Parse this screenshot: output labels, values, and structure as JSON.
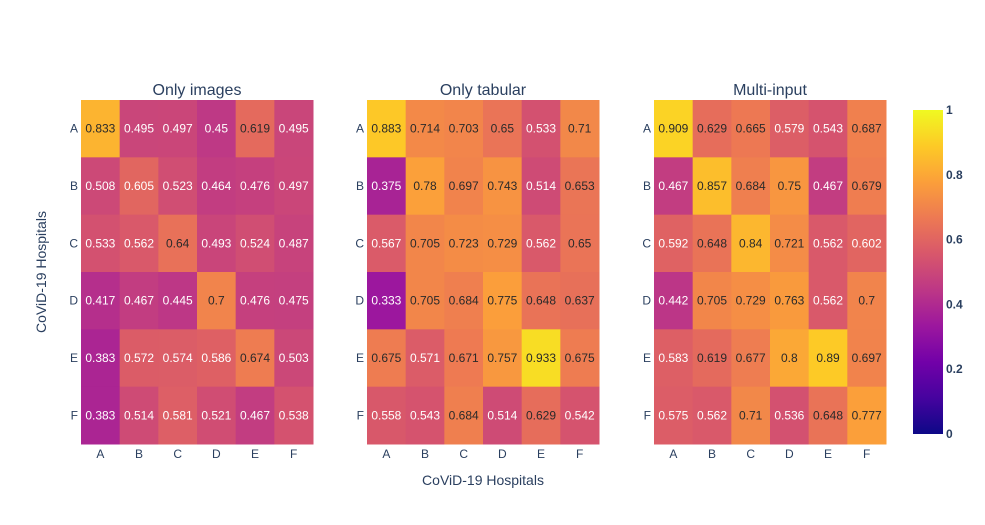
{
  "chart_data": {
    "type": "heatmap",
    "colorscale": [
      "#0d0887",
      "#46039f",
      "#7201a8",
      "#9c179e",
      "#bd3786",
      "#d8576b",
      "#ed7953",
      "#fb9f3a",
      "#fdca26",
      "#f0f921"
    ],
    "zlim": [
      0,
      1
    ],
    "colorbar_ticks": [
      "0",
      "0.2",
      "0.4",
      "0.6",
      "0.8",
      "1"
    ],
    "xlabel": "CoViD-19 Hospitals",
    "ylabel": "CoViD-19 Hospitals",
    "x_categories": [
      "A",
      "B",
      "C",
      "D",
      "E",
      "F"
    ],
    "y_categories": [
      "A",
      "B",
      "C",
      "D",
      "E",
      "F"
    ],
    "panels": [
      {
        "title": "Only images",
        "values": [
          [
            0.833,
            0.495,
            0.497,
            0.45,
            0.619,
            0.495
          ],
          [
            0.508,
            0.605,
            0.523,
            0.464,
            0.476,
            0.497
          ],
          [
            0.533,
            0.562,
            0.64,
            0.493,
            0.524,
            0.487
          ],
          [
            0.417,
            0.467,
            0.445,
            0.7,
            0.476,
            0.475
          ],
          [
            0.383,
            0.572,
            0.574,
            0.586,
            0.674,
            0.503
          ],
          [
            0.383,
            0.514,
            0.581,
            0.521,
            0.467,
            0.538
          ]
        ]
      },
      {
        "title": "Only tabular",
        "values": [
          [
            0.883,
            0.714,
            0.703,
            0.65,
            0.533,
            0.71
          ],
          [
            0.375,
            0.78,
            0.697,
            0.743,
            0.514,
            0.653
          ],
          [
            0.567,
            0.705,
            0.723,
            0.729,
            0.562,
            0.65
          ],
          [
            0.333,
            0.705,
            0.684,
            0.775,
            0.648,
            0.637
          ],
          [
            0.675,
            0.571,
            0.671,
            0.757,
            0.933,
            0.675
          ],
          [
            0.558,
            0.543,
            0.684,
            0.514,
            0.629,
            0.542
          ]
        ]
      },
      {
        "title": "Multi-input",
        "values": [
          [
            0.909,
            0.629,
            0.665,
            0.579,
            0.543,
            0.687
          ],
          [
            0.467,
            0.857,
            0.684,
            0.75,
            0.467,
            0.679
          ],
          [
            0.592,
            0.648,
            0.84,
            0.721,
            0.562,
            0.602
          ],
          [
            0.442,
            0.705,
            0.729,
            0.763,
            0.562,
            0.7
          ],
          [
            0.583,
            0.619,
            0.677,
            0.8,
            0.89,
            0.697
          ],
          [
            0.575,
            0.562,
            0.71,
            0.536,
            0.648,
            0.777
          ]
        ]
      }
    ]
  }
}
